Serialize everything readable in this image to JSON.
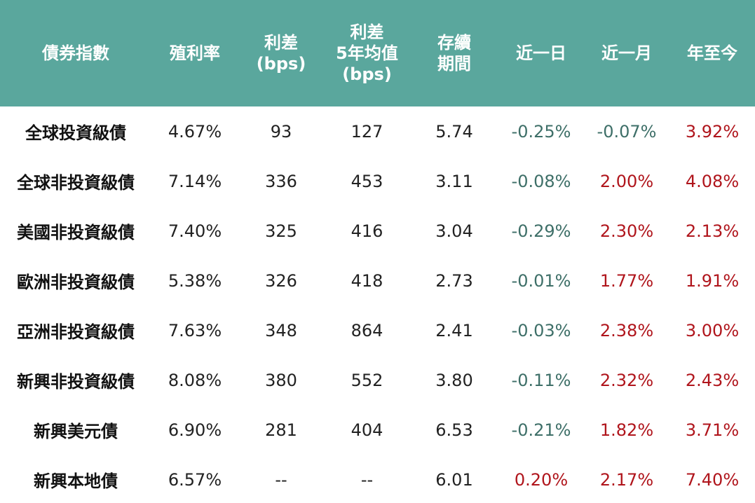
{
  "colors": {
    "header_bg": "#5aa79d",
    "header_text": "#ffffff",
    "negative": "#3e6f68",
    "positive": "#b0151c",
    "neutral": "#222222"
  },
  "chart_data": {
    "type": "table",
    "columns": [
      "債券指數",
      "殖利率",
      "利差\n(bps)",
      "利差\n5年均值\n(bps)",
      "存續\n期間",
      "近一日",
      "近一月",
      "年至今"
    ],
    "rows": [
      {
        "name": "全球投資級債",
        "yield": "4.67%",
        "spread": "93",
        "spread5y": "127",
        "duration": "5.74",
        "d1": "-0.25%",
        "m1": "-0.07%",
        "ytd": "3.92%"
      },
      {
        "name": "全球非投資級債",
        "yield": "7.14%",
        "spread": "336",
        "spread5y": "453",
        "duration": "3.11",
        "d1": "-0.08%",
        "m1": "2.00%",
        "ytd": "4.08%"
      },
      {
        "name": "美國非投資級債",
        "yield": "7.40%",
        "spread": "325",
        "spread5y": "416",
        "duration": "3.04",
        "d1": "-0.29%",
        "m1": "2.30%",
        "ytd": "2.13%"
      },
      {
        "name": "歐洲非投資級債",
        "yield": "5.38%",
        "spread": "326",
        "spread5y": "418",
        "duration": "2.73",
        "d1": "-0.01%",
        "m1": "1.77%",
        "ytd": "1.91%"
      },
      {
        "name": "亞洲非投資級債",
        "yield": "7.63%",
        "spread": "348",
        "spread5y": "864",
        "duration": "2.41",
        "d1": "-0.03%",
        "m1": "2.38%",
        "ytd": "3.00%"
      },
      {
        "name": "新興非投資級債",
        "yield": "8.08%",
        "spread": "380",
        "spread5y": "552",
        "duration": "3.80",
        "d1": "-0.11%",
        "m1": "2.32%",
        "ytd": "2.43%"
      },
      {
        "name": "新興美元債",
        "yield": "6.90%",
        "spread": "281",
        "spread5y": "404",
        "duration": "6.53",
        "d1": "-0.21%",
        "m1": "1.82%",
        "ytd": "3.71%"
      },
      {
        "name": "新興本地債",
        "yield": "6.57%",
        "spread": "--",
        "spread5y": "--",
        "duration": "6.01",
        "d1": "0.20%",
        "m1": "2.17%",
        "ytd": "7.40%"
      }
    ]
  }
}
